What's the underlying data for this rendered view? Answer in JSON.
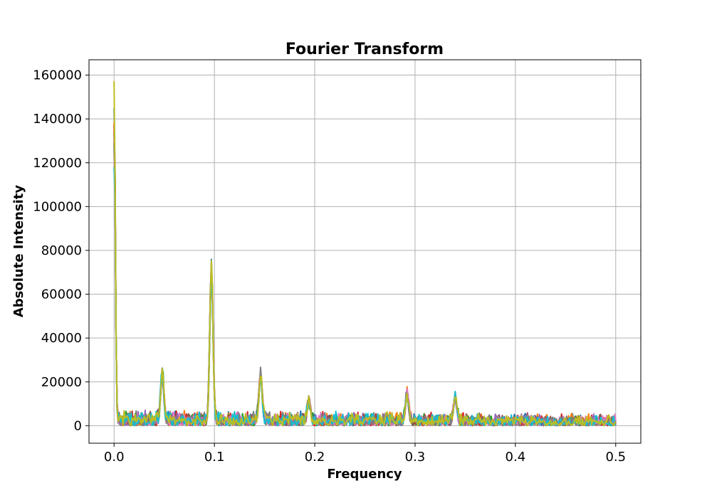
{
  "chart_data": {
    "type": "line",
    "title": "Fourier Transform",
    "xlabel": "Frequency",
    "ylabel": "Absolute Intensity",
    "xlim": [
      -0.025,
      0.525
    ],
    "ylim": [
      -8000,
      167000
    ],
    "xticks": [
      0.0,
      0.1,
      0.2,
      0.3,
      0.4,
      0.5
    ],
    "xtick_labels": [
      "0.0",
      "0.1",
      "0.2",
      "0.3",
      "0.4",
      "0.5"
    ],
    "yticks": [
      0,
      20000,
      40000,
      60000,
      80000,
      100000,
      120000,
      140000,
      160000
    ],
    "ytick_labels": [
      "0",
      "20000",
      "40000",
      "60000",
      "80000",
      "100000",
      "120000",
      "140000",
      "160000"
    ],
    "grid": true,
    "legend": "none",
    "series_colors": [
      "#1f77b4",
      "#ff7f0e",
      "#2ca02c",
      "#d62728",
      "#9467bd",
      "#8c564b",
      "#e377c2",
      "#7f7f7f",
      "#17becf",
      "#bcbd22"
    ],
    "peaks": [
      {
        "x": 0.0,
        "y": 159000
      },
      {
        "x": 0.048,
        "y": 22000
      },
      {
        "x": 0.097,
        "y": 73500
      },
      {
        "x": 0.146,
        "y": 22500
      },
      {
        "x": 0.194,
        "y": 9500
      },
      {
        "x": 0.292,
        "y": 13000
      },
      {
        "x": 0.34,
        "y": 12000
      }
    ],
    "baseline_noise_max": 8000,
    "series": [
      {
        "peak_scale": 1.0
      },
      {
        "peak_scale": 0.97
      },
      {
        "peak_scale": 0.95
      },
      {
        "peak_scale": 0.99
      },
      {
        "peak_scale": 0.93
      },
      {
        "peak_scale": 0.96
      },
      {
        "peak_scale": 0.94
      },
      {
        "peak_scale": 0.98
      },
      {
        "peak_scale": 0.92
      },
      {
        "peak_scale": 0.995
      }
    ]
  }
}
